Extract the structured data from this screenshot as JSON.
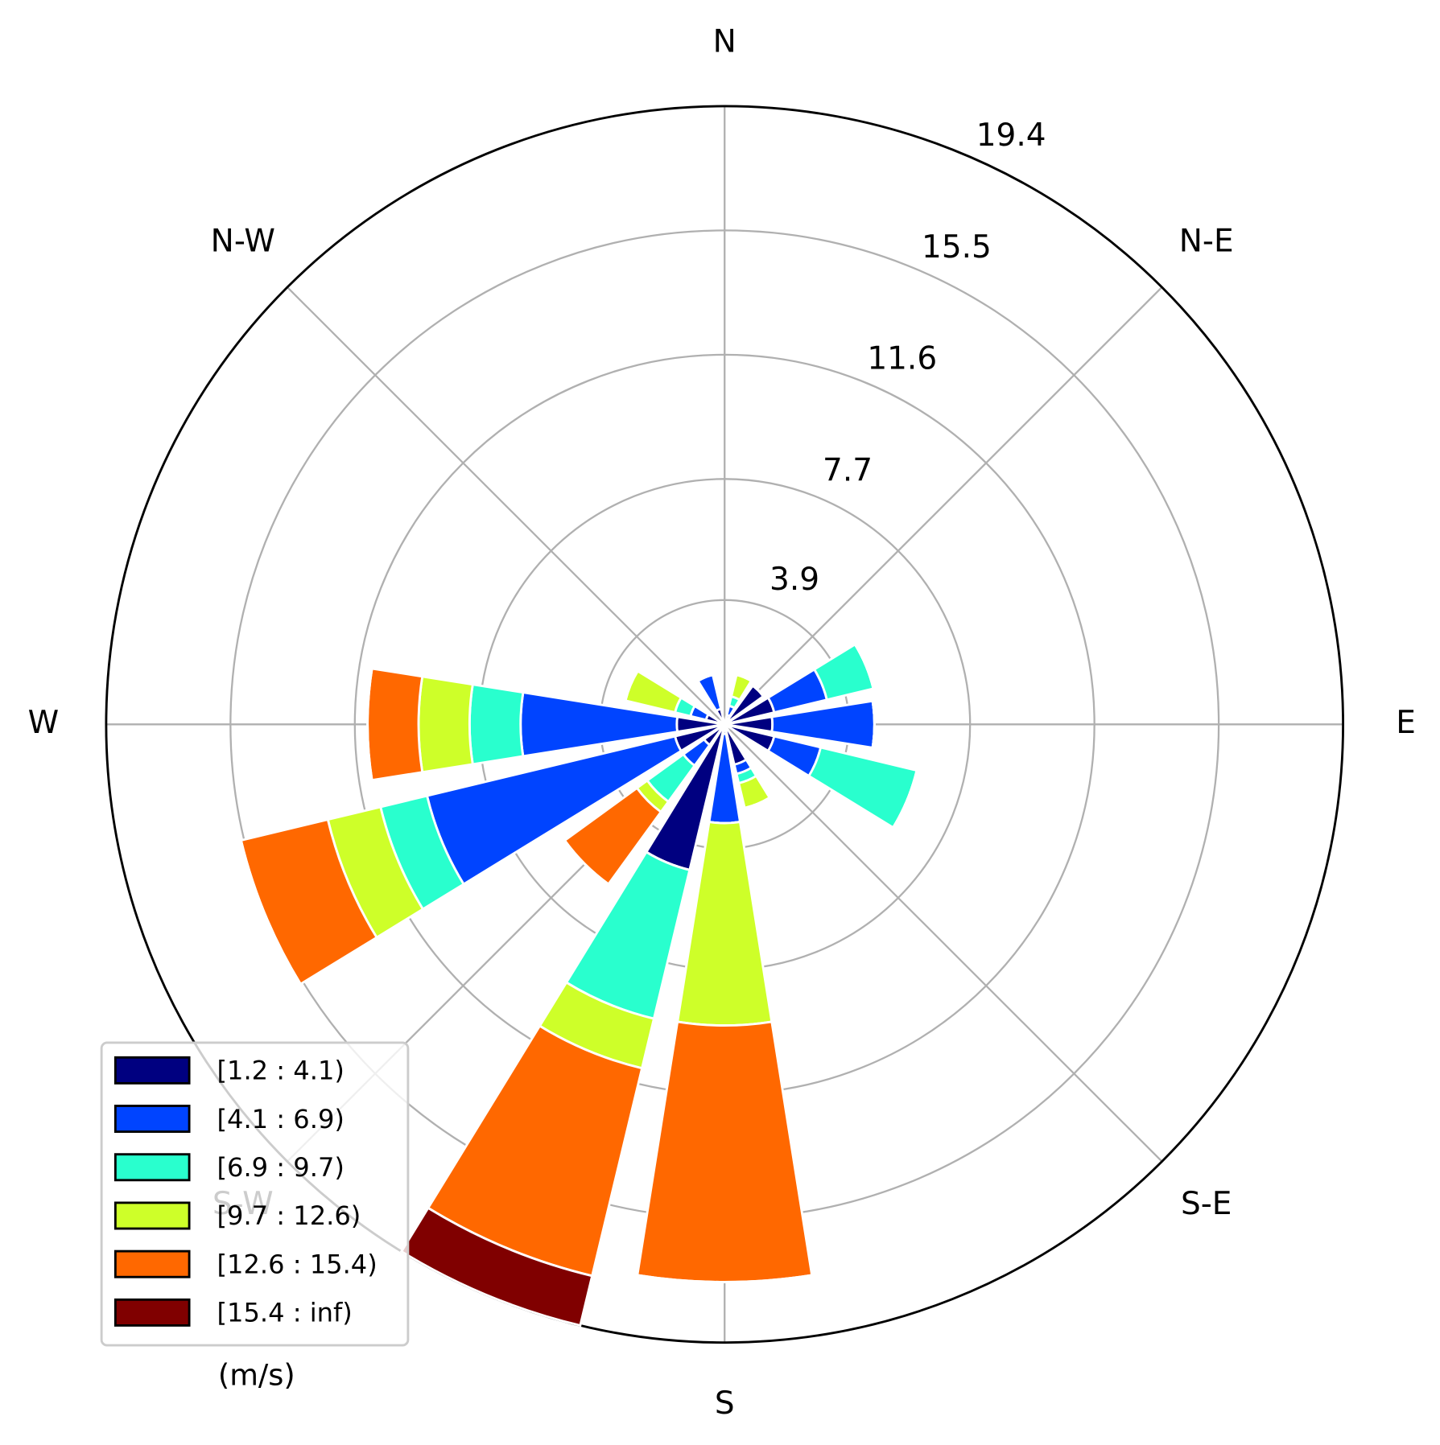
{
  "chart_data": {
    "type": "windrose",
    "categories": [
      "N",
      null,
      "N-E",
      null,
      "E",
      null,
      "S-E",
      null,
      "S",
      null,
      "S-W",
      null,
      "W",
      null,
      "N-W",
      null
    ],
    "series": [
      {
        "name": "[1.2 : 4.1)",
        "color": "#000080",
        "values": [
          0,
          0.3,
          1.5,
          1.6,
          1.5,
          1.6,
          0,
          1.3,
          0.3,
          4.7,
          0.8,
          1.6,
          1.5,
          0.6,
          0,
          0.5
        ]
      },
      {
        "name": "[4.1 : 6.9)",
        "color": "#0044ff",
        "values": [
          0,
          0.3,
          0,
          1.7,
          3.2,
          1.5,
          0,
          0.3,
          2.8,
          0,
          0.8,
          8.0,
          4.9,
          0.5,
          0,
          1.1
        ]
      },
      {
        "name": "[6.9 : 9.7)",
        "color": "#29ffce",
        "values": [
          0,
          0.3,
          0,
          1.5,
          0,
          3.1,
          0,
          0.3,
          0,
          4.8,
          1.4,
          1.5,
          1.6,
          0.5,
          0,
          0
        ]
      },
      {
        "name": "[9.7 : 12.6)",
        "color": "#ceff29",
        "values": [
          0,
          0.7,
          0,
          0,
          0,
          0,
          0,
          0.8,
          6.35,
          1.6,
          0.4,
          1.7,
          1.6,
          1.6,
          0,
          0
        ]
      },
      {
        "name": "[12.6 : 15.4)",
        "color": "#ff6800",
        "values": [
          0,
          0,
          0,
          0,
          0,
          0,
          0,
          0,
          8.05,
          6.7,
          2.8,
          2.8,
          1.6,
          0,
          0,
          0
        ]
      },
      {
        "name": "[15.4 : inf)",
        "color": "#800000",
        "values": [
          0,
          0,
          0,
          0,
          0,
          0,
          0,
          0,
          0,
          1.6,
          0,
          0,
          0,
          0,
          0,
          0
        ]
      }
    ],
    "legend_title": "(m/s)",
    "ylim": [
      0,
      19.4
    ],
    "yticks": [
      3.9,
      7.7,
      11.6,
      15.5,
      19.4
    ],
    "grid": true,
    "legend": "lower left"
  }
}
